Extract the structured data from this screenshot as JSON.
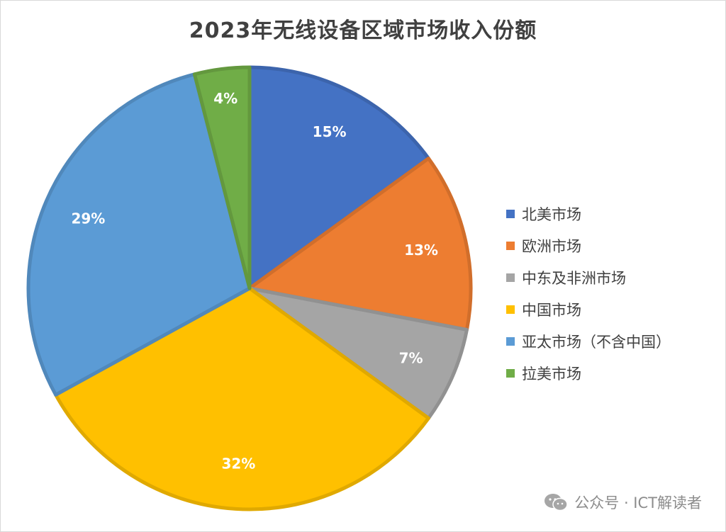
{
  "chart_data": {
    "type": "pie",
    "title": "2023年无线设备区域市场收入份额",
    "categories": [
      "北美市场",
      "欧洲市场",
      "中东及非洲市场",
      "中国市场",
      "亚太市场（不含中国）",
      "拉美市场"
    ],
    "values": [
      15,
      13,
      7,
      32,
      29,
      4
    ],
    "labels": [
      "15%",
      "13%",
      "7%",
      "32%",
      "29%",
      "4%"
    ],
    "colors": [
      "#4472C4",
      "#ED7D31",
      "#A5A5A5",
      "#FFC000",
      "#5B9BD5",
      "#70AD47"
    ],
    "legend_position": "right"
  },
  "watermark": {
    "text": "公众号 · ICT解读者",
    "icon": "wechat-icon"
  }
}
